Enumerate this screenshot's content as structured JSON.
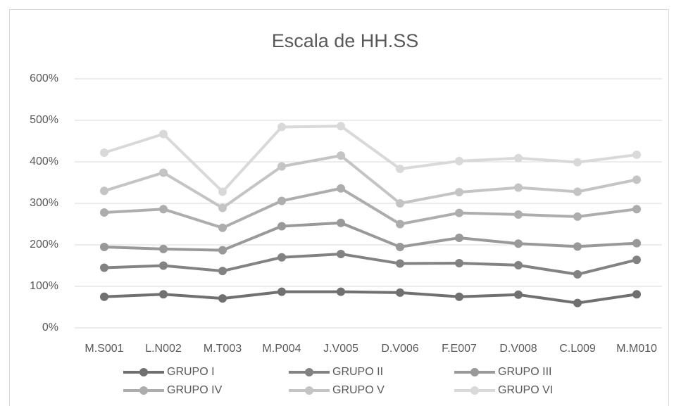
{
  "chart_data": {
    "type": "line",
    "stacked": true,
    "title": "Escala de HH.SS",
    "categories": [
      "M.S001",
      "L.N002",
      "M.T003",
      "M.P004",
      "J.V005",
      "D.V006",
      "F.E007",
      "D.V008",
      "C.L009",
      "M.M010"
    ],
    "series": [
      {
        "name": "GRUPO I",
        "color": "#707070",
        "values": [
          75,
          81,
          71,
          87,
          87,
          85,
          75,
          80,
          60,
          81
        ]
      },
      {
        "name": "GRUPO II",
        "color": "#828282",
        "values": [
          70,
          69,
          66,
          83,
          91,
          70,
          81,
          71,
          69,
          83
        ]
      },
      {
        "name": "GRUPO III",
        "color": "#999999",
        "values": [
          50,
          40,
          50,
          75,
          75,
          40,
          61,
          52,
          67,
          40
        ]
      },
      {
        "name": "GRUPO IV",
        "color": "#adadad",
        "values": [
          83,
          96,
          54,
          61,
          83,
          55,
          60,
          70,
          72,
          82
        ]
      },
      {
        "name": "GRUPO V",
        "color": "#c4c4c4",
        "values": [
          52,
          88,
          48,
          83,
          79,
          50,
          50,
          65,
          60,
          71
        ]
      },
      {
        "name": "GRUPO VI",
        "color": "#d9d9d9",
        "values": [
          92,
          93,
          39,
          95,
          71,
          83,
          75,
          71,
          71,
          60
        ]
      }
    ],
    "ylim": [
      0,
      600
    ],
    "yticks": [
      {
        "value": 0,
        "label": "0%"
      },
      {
        "value": 100,
        "label": "100%"
      },
      {
        "value": 200,
        "label": "200%"
      },
      {
        "value": 300,
        "label": "300%"
      },
      {
        "value": 400,
        "label": "400%"
      },
      {
        "value": 500,
        "label": "500%"
      },
      {
        "value": 600,
        "label": "600%"
      }
    ],
    "grid": true,
    "legend": "bottom"
  }
}
